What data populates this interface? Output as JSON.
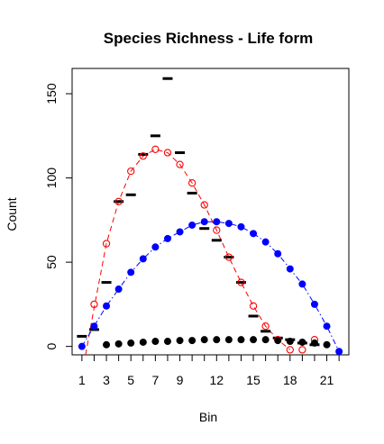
{
  "chart_data": {
    "type": "scatter",
    "title": "Species Richness - Life form",
    "xlabel": "Bin",
    "ylabel": "Count",
    "xlim": [
      0.2,
      22.8
    ],
    "ylim": [
      -5,
      165
    ],
    "x_ticks": [
      1,
      3,
      5,
      7,
      9,
      12,
      15,
      18,
      21
    ],
    "x_tick_labels": [
      "1",
      "3",
      "5",
      "7",
      "9",
      "12",
      "15",
      "18",
      "21"
    ],
    "x_minor_ticks": [
      1,
      2,
      3,
      4,
      5,
      6,
      7,
      8,
      9,
      10,
      11,
      12,
      13,
      14,
      15,
      16,
      17,
      18,
      19,
      20,
      21,
      22
    ],
    "y_ticks": [
      0,
      50,
      100,
      150
    ],
    "y_tick_labels": [
      "0",
      "50",
      "100",
      "150"
    ],
    "grid": false,
    "legend": "none",
    "colors": {
      "red": "#ff0000",
      "blue": "#0000ff",
      "black": "#000000"
    },
    "series": [
      {
        "marker": "dash",
        "color": "#000000",
        "x": [
          1,
          2,
          3,
          4,
          5,
          6,
          7,
          8,
          9,
          10,
          11,
          12,
          13,
          14,
          15,
          16,
          17,
          18,
          19,
          20
        ],
        "y": [
          6,
          10,
          38,
          86,
          90,
          114,
          125,
          159,
          115,
          91,
          70,
          63,
          53,
          38,
          18,
          9,
          5,
          4,
          2,
          1
        ]
      },
      {
        "marker": "open-circle",
        "color": "#ff0000",
        "x": [
          2,
          3,
          4,
          5,
          6,
          7,
          8,
          9,
          10,
          11,
          12,
          13,
          14,
          15,
          16,
          17,
          18,
          19,
          20
        ],
        "y": [
          25,
          61,
          86,
          104,
          113,
          117,
          115,
          108,
          97,
          84,
          69,
          53,
          38,
          24,
          12,
          4,
          -2,
          -2,
          4
        ]
      },
      {
        "marker": "filled-circle",
        "color": "#0000ff",
        "x": [
          1,
          2,
          3,
          4,
          5,
          6,
          7,
          8,
          9,
          10,
          11,
          12,
          13,
          14,
          15,
          16,
          17,
          18,
          19,
          20,
          21,
          22
        ],
        "y": [
          0,
          12,
          24,
          34,
          44,
          52,
          59,
          64,
          68,
          72,
          74,
          74,
          73,
          71,
          67,
          62,
          55,
          46,
          37,
          25,
          12,
          -3
        ]
      },
      {
        "marker": "filled-circle",
        "color": "#000000",
        "x": [
          3,
          4,
          5,
          6,
          7,
          8,
          9,
          10,
          11,
          12,
          13,
          14,
          15,
          16,
          17,
          18,
          19,
          20,
          21
        ],
        "y": [
          1,
          1.5,
          2,
          2.5,
          3,
          3,
          3.5,
          3.5,
          4,
          4,
          4,
          4,
          4,
          4,
          3.5,
          3,
          2.5,
          2,
          1
        ]
      }
    ],
    "fit_curves": [
      {
        "color": "#ff0000",
        "dash": "dashed",
        "x": [
          1.3,
          2,
          3,
          4,
          5,
          6,
          7,
          8,
          9,
          10,
          11,
          12,
          13,
          14,
          15,
          16,
          17,
          18
        ],
        "y": [
          -5,
          23,
          61,
          86,
          104,
          113,
          117,
          115,
          108,
          97,
          84,
          69,
          53,
          38,
          24,
          12,
          4,
          -2
        ]
      },
      {
        "color": "#0000ff",
        "dash": "dash-dot",
        "x": [
          1,
          2,
          3,
          4,
          5,
          6,
          7,
          8,
          9,
          10,
          11,
          12,
          13,
          14,
          15,
          16,
          17,
          18,
          19,
          20,
          21,
          22
        ],
        "y": [
          0,
          12,
          24,
          34,
          44,
          52,
          59,
          64,
          68,
          72,
          74,
          74,
          73,
          71,
          67,
          62,
          55,
          46,
          37,
          25,
          12,
          -3
        ]
      }
    ]
  }
}
